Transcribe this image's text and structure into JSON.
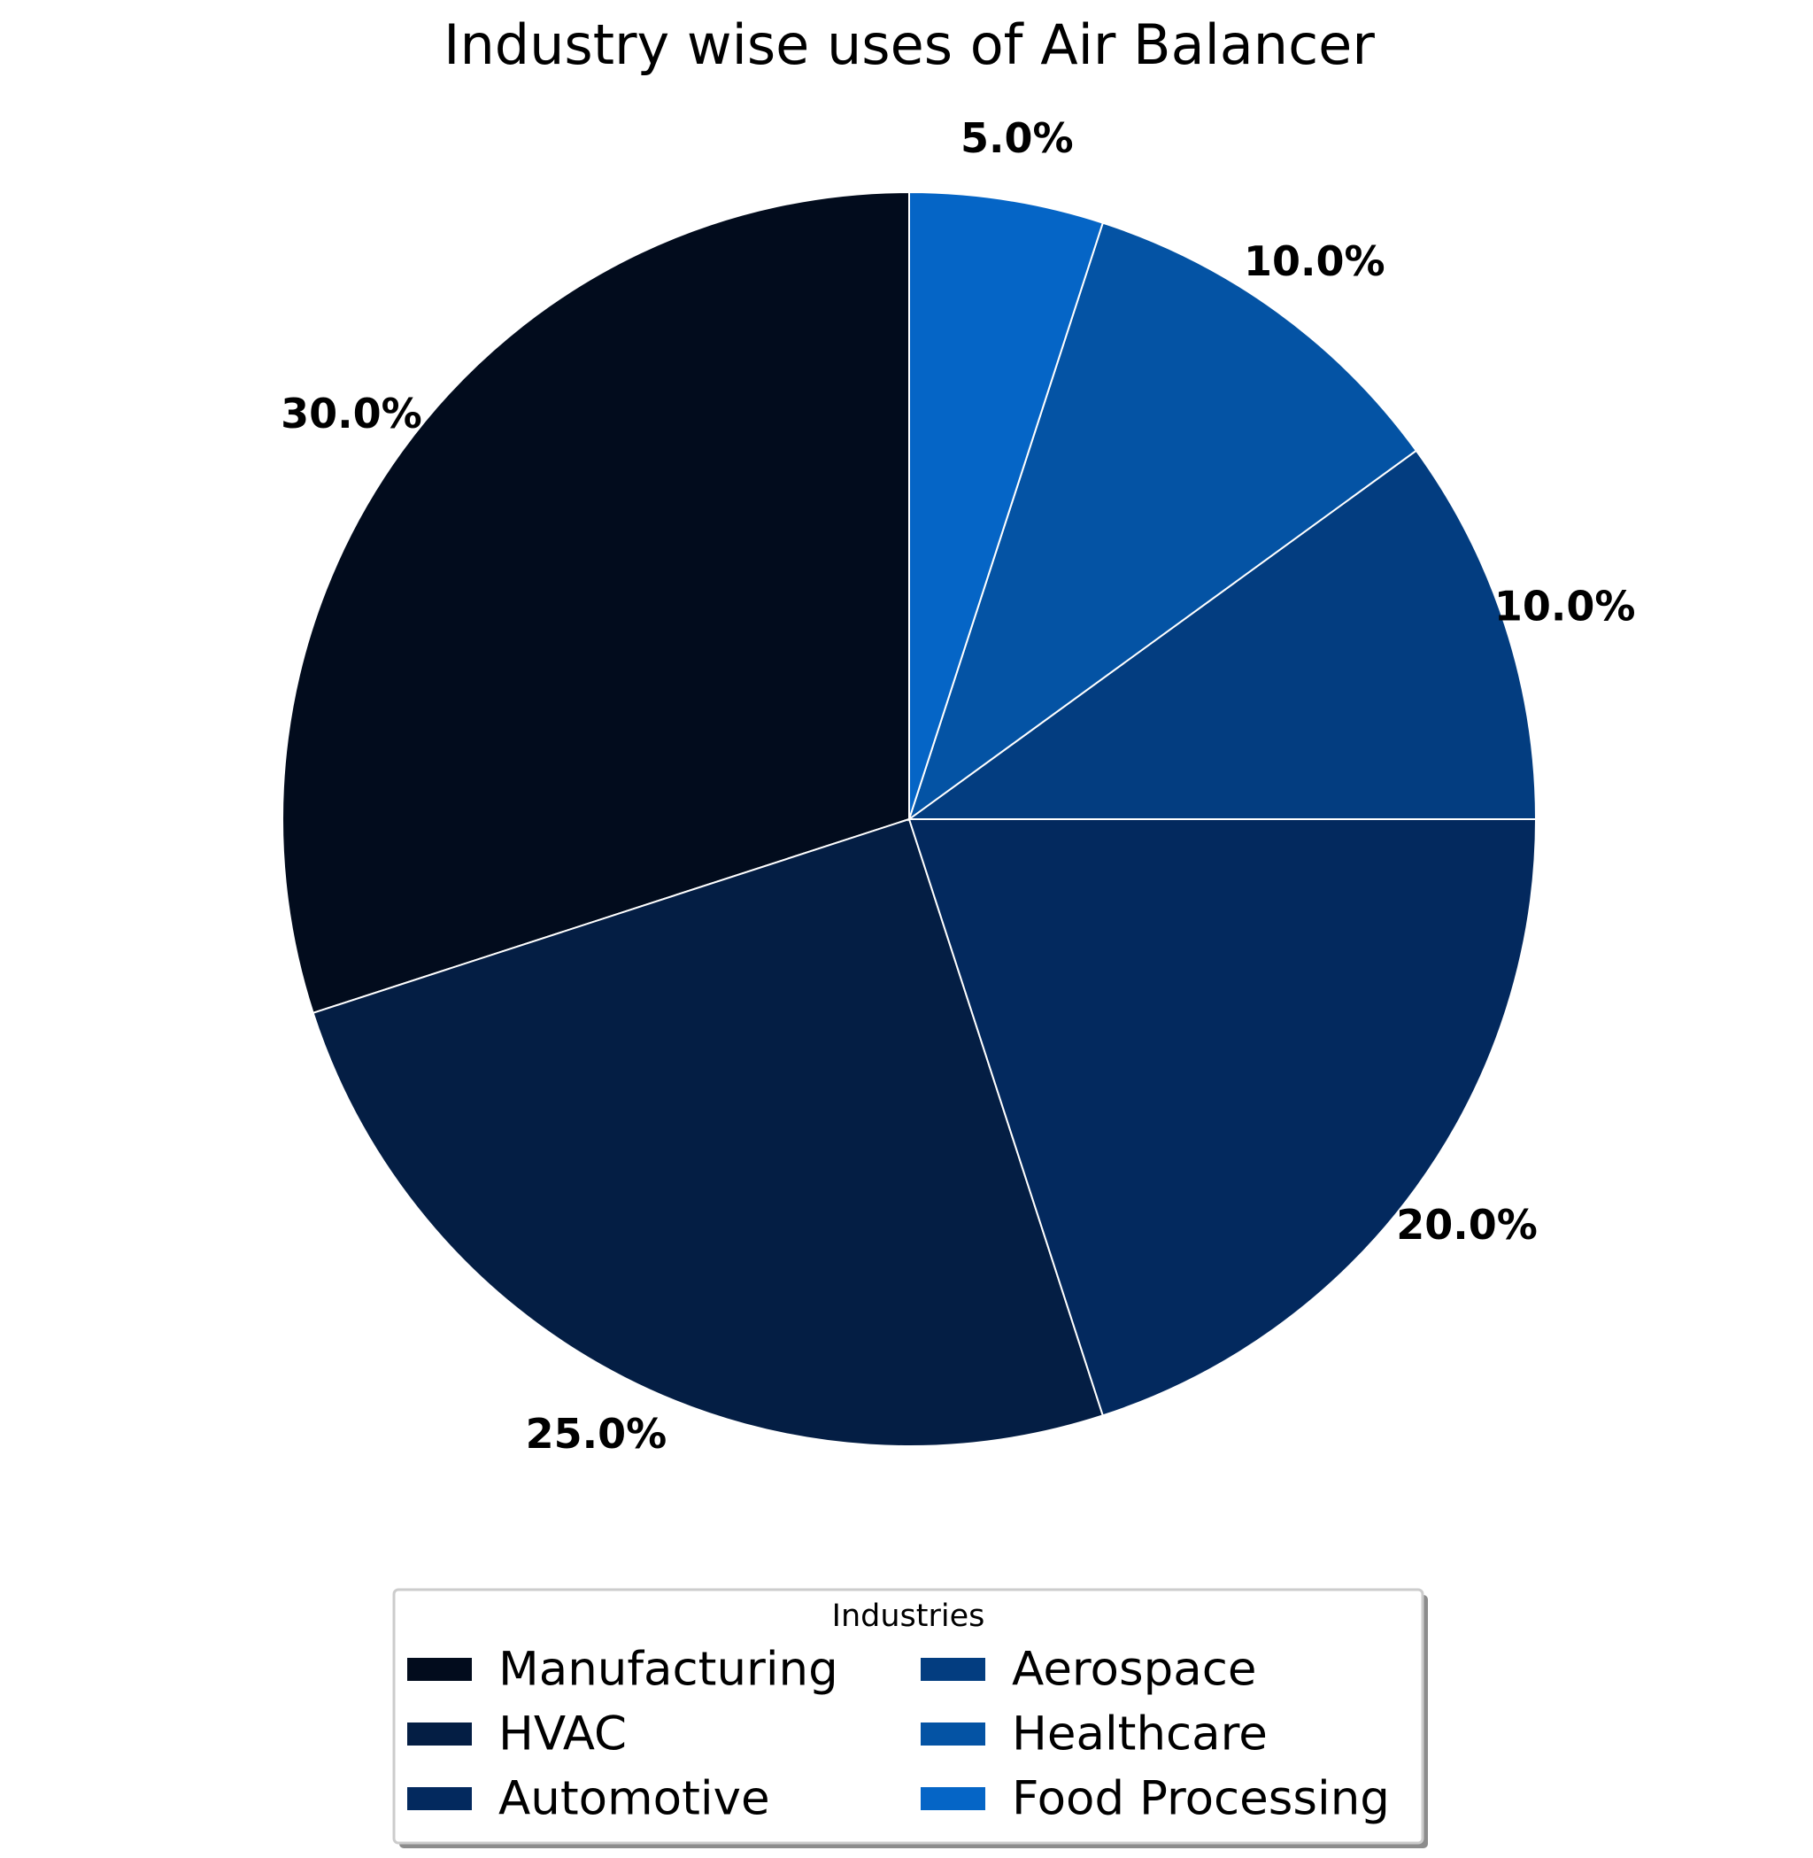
{
  "chart_data": {
    "type": "pie",
    "title": "Industry wise uses of Air Balancer",
    "categories": [
      "Manufacturing",
      "HVAC",
      "Automotive",
      "Aerospace",
      "Healthcare",
      "Food Processing"
    ],
    "values": [
      30,
      25,
      20,
      10,
      10,
      5
    ],
    "value_labels": [
      "30.0%",
      "25.0%",
      "20.0%",
      "10.0%",
      "10.0%",
      "5.0%"
    ],
    "colors": [
      "#020c1d",
      "#041e44",
      "#03295e",
      "#033d80",
      "#0453a4",
      "#0565c6"
    ],
    "start_angle_deg": 90,
    "direction": "counterclockwise",
    "edge_color": "#ffffff",
    "legend": {
      "title": "Industries",
      "placement": "bottom-center",
      "columns": 2
    }
  }
}
